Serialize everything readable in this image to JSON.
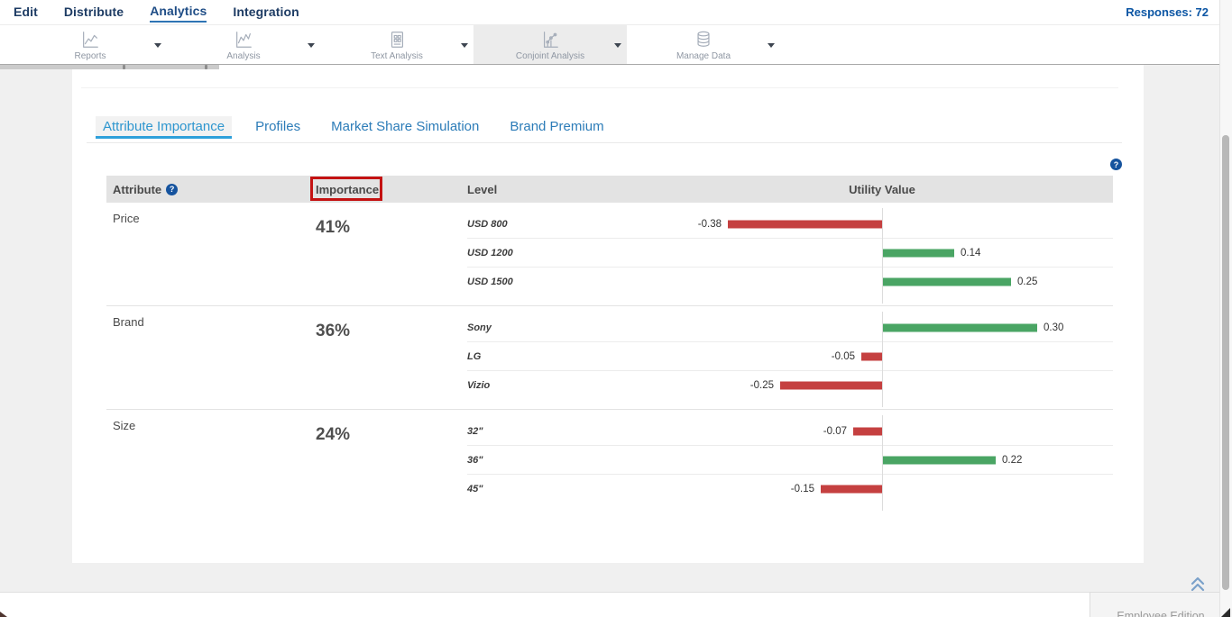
{
  "nav": {
    "items": [
      {
        "label": "Edit",
        "active": false
      },
      {
        "label": "Distribute",
        "active": false
      },
      {
        "label": "Analytics",
        "active": true
      },
      {
        "label": "Integration",
        "active": false
      }
    ],
    "responses_label": "Responses: 72"
  },
  "toolbar": {
    "buttons": [
      {
        "label": "Reports",
        "icon": "reports-chart-icon",
        "selected": false
      },
      {
        "label": "Analysis",
        "icon": "analysis-chart-icon",
        "selected": false
      },
      {
        "label": "Text Analysis",
        "icon": "text-analysis-icon",
        "selected": false
      },
      {
        "label": "Conjoint Analysis",
        "icon": "conjoint-analysis-icon",
        "selected": true
      },
      {
        "label": "Manage Data",
        "icon": "database-icon",
        "selected": false
      }
    ]
  },
  "tabs": [
    {
      "label": "Attribute Importance",
      "active": true
    },
    {
      "label": "Profiles",
      "active": false
    },
    {
      "label": "Market Share Simulation",
      "active": false
    },
    {
      "label": "Brand Premium",
      "active": false
    }
  ],
  "table": {
    "headers": {
      "attribute": "Attribute",
      "importance": "Importance",
      "level": "Level",
      "utility": "Utility Value"
    },
    "groups": [
      {
        "attribute": "Price",
        "importance": "41%",
        "levels": [
          {
            "name": "USD 800",
            "value": -0.38,
            "display": "-0.38"
          },
          {
            "name": "USD 1200",
            "value": 0.14,
            "display": "0.14"
          },
          {
            "name": "USD 1500",
            "value": 0.25,
            "display": "0.25"
          }
        ]
      },
      {
        "attribute": "Brand",
        "importance": "36%",
        "levels": [
          {
            "name": "Sony",
            "value": 0.3,
            "display": "0.30"
          },
          {
            "name": "LG",
            "value": -0.05,
            "display": "-0.05"
          },
          {
            "name": "Vizio",
            "value": -0.25,
            "display": "-0.25"
          }
        ]
      },
      {
        "attribute": "Size",
        "importance": "24%",
        "levels": [
          {
            "name": "32\"",
            "value": -0.07,
            "display": "-0.07"
          },
          {
            "name": "36\"",
            "value": 0.22,
            "display": "0.22"
          },
          {
            "name": "45\"",
            "value": -0.15,
            "display": "-0.15"
          }
        ]
      }
    ]
  },
  "chart_data": {
    "type": "bar",
    "orientation": "horizontal",
    "title": "Utility Value",
    "categories": [
      "USD 800",
      "USD 1200",
      "USD 1500",
      "Sony",
      "LG",
      "Vizio",
      "32\"",
      "36\"",
      "45\""
    ],
    "values": [
      -0.38,
      0.14,
      0.25,
      0.3,
      -0.05,
      -0.25,
      -0.07,
      0.22,
      -0.15
    ],
    "xlim": [
      -0.45,
      0.45
    ],
    "positive_color": "#4aa564",
    "negative_color": "#c54040"
  },
  "footer": {
    "edition_label": "Employee Edition"
  },
  "colors": {
    "positive_bar": "#4aa564",
    "negative_bar": "#c54040",
    "tab_active": "#2ea0da",
    "nav_text": "#1e3c64",
    "annotation_box": "#c41212",
    "header_bg": "#e3e3e3"
  }
}
